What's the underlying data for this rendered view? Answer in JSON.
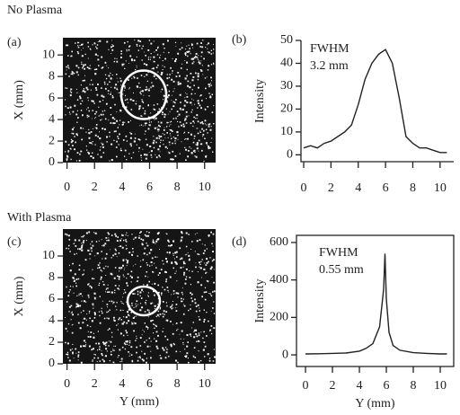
{
  "chart_data": [
    {
      "type": "image",
      "heading": "No Plasma",
      "label": "(a)",
      "y_label": "X (mm)",
      "xlim": [
        -0.3,
        10.8
      ],
      "ylim": [
        0,
        11.6
      ],
      "xticks": [
        0,
        2,
        4,
        6,
        8,
        10
      ],
      "yticks": [
        0,
        2,
        4,
        6,
        8,
        10
      ]
    },
    {
      "type": "line",
      "label": "(b)",
      "y_label": "Intensity",
      "annotation": [
        "FWHM",
        "3.2 mm"
      ],
      "xlim": [
        -0.2,
        11
      ],
      "ylim": [
        -3,
        50
      ],
      "xticks": [
        0,
        2,
        4,
        6,
        8,
        10
      ],
      "yticks": [
        0,
        10,
        20,
        30,
        40,
        50
      ],
      "x": [
        0,
        0.5,
        1,
        1.5,
        2,
        2.5,
        3,
        3.5,
        4,
        4.5,
        5,
        5.5,
        6,
        6.5,
        7,
        7.5,
        8,
        8.5,
        9,
        9.5,
        10,
        10.5
      ],
      "series": [
        {
          "color": "#222222",
          "values": [
            3,
            4,
            3,
            5,
            6,
            8,
            10,
            13,
            22,
            33,
            40,
            44,
            46,
            40,
            25,
            8,
            5,
            3,
            3,
            2,
            1,
            1
          ]
        }
      ]
    },
    {
      "type": "image",
      "heading": "With Plasma",
      "label": "(c)",
      "y_label": "X (mm)",
      "x_label": "Y (mm)",
      "xlim": [
        -0.3,
        10.8
      ],
      "ylim": [
        0,
        12.5
      ],
      "xticks": [
        0,
        2,
        4,
        6,
        8,
        10
      ],
      "yticks": [
        0,
        2,
        4,
        6,
        8,
        10
      ]
    },
    {
      "type": "line",
      "label": "(d)",
      "y_label": "Intensity",
      "x_label": "Y (mm)",
      "annotation": [
        "FWHM",
        "0.55 mm"
      ],
      "frame": true,
      "xlim": [
        -0.67,
        11
      ],
      "ylim": [
        -62,
        638
      ],
      "xticks": [
        0,
        2,
        4,
        6,
        8,
        10
      ],
      "yticks": [
        0,
        200,
        400,
        600
      ],
      "x": [
        0,
        1,
        2,
        3,
        4,
        4.5,
        5,
        5.5,
        5.8,
        5.9,
        6,
        6.2,
        6.5,
        7,
        8,
        9,
        10,
        10.5
      ],
      "series": [
        {
          "color": "#222222",
          "values": [
            5,
            6,
            8,
            10,
            20,
            35,
            60,
            150,
            350,
            540,
            300,
            120,
            50,
            25,
            12,
            8,
            5,
            5
          ]
        }
      ]
    }
  ]
}
